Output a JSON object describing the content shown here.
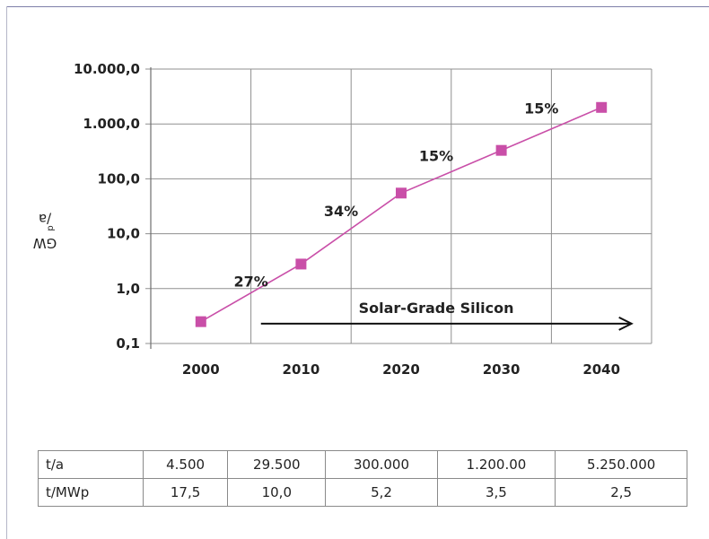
{
  "chart_data": {
    "type": "line",
    "title": "",
    "xlabel": "",
    "ylabel": "GWp/a",
    "ylabel_main": "GW",
    "ylabel_sub": "p",
    "ylabel_tail": "/a",
    "y_scale": "log",
    "ylim": [
      0.1,
      10000
    ],
    "y_ticks": [
      "10.000,0",
      "1.000,0",
      "100,0",
      "10,0",
      "1,0",
      "0,1"
    ],
    "categories": [
      "2000",
      "2010",
      "2020",
      "2030",
      "2040"
    ],
    "x": [
      2000,
      2010,
      2020,
      2030,
      2040
    ],
    "series": [
      {
        "values": [
          0.25,
          2.8,
          55,
          330,
          2000
        ],
        "color": "#c94fa8"
      }
    ],
    "annotations": [
      {
        "text": "27%",
        "x": 2005,
        "y": 1.1
      },
      {
        "text": "34%",
        "x": 2014,
        "y": 21
      },
      {
        "text": "15%",
        "x": 2023.5,
        "y": 210
      },
      {
        "text": "15%",
        "x": 2034,
        "y": 1550
      }
    ],
    "arrow": {
      "text": "Solar-Grade Silicon",
      "x_start": 2006,
      "x_end": 2043,
      "y": 0.23
    },
    "grid": true
  },
  "table": {
    "rows": [
      {
        "label": "t/a",
        "values": [
          "4.500",
          "29.500",
          "300.000",
          "1.200.00",
          "5.250.000"
        ]
      },
      {
        "label": "t/MWp",
        "values": [
          "17,5",
          "10,0",
          "5,2",
          "3,5",
          "2,5"
        ]
      }
    ]
  }
}
